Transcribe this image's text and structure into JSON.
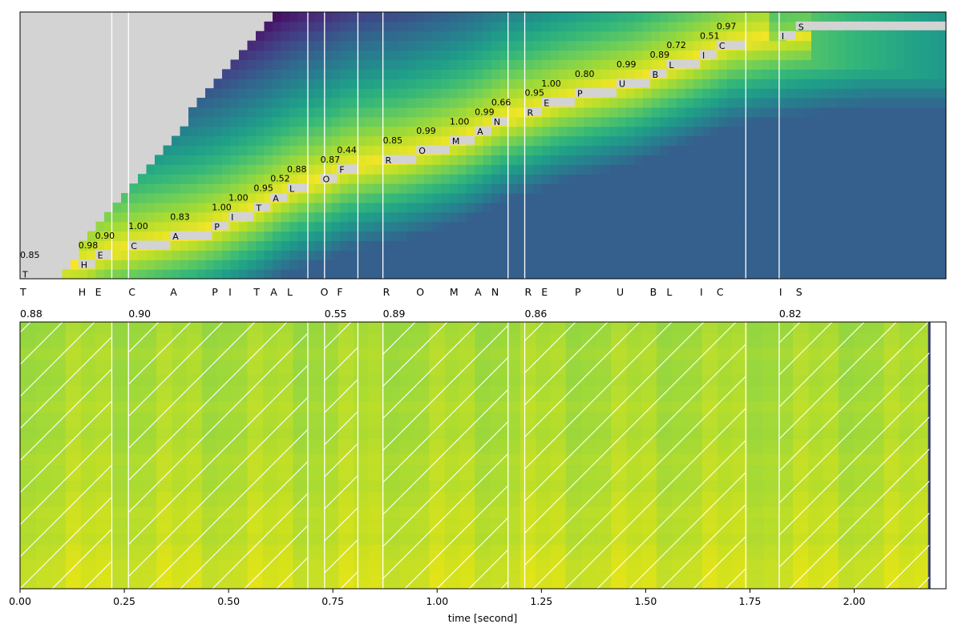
{
  "chart_data": [
    {
      "type": "heatmap",
      "panel": "alignment",
      "colormap": "viridis",
      "background_color": "#d3d3d3",
      "path_color": "#d3d3d3",
      "grid": false,
      "tokens": [
        {
          "char": "T",
          "t0": 0.0,
          "t1": 0.02,
          "score": "0.85"
        },
        {
          "char": "H",
          "t0": 0.14,
          "t1": 0.18,
          "score": "0.98"
        },
        {
          "char": "E",
          "t0": 0.18,
          "t1": 0.22,
          "score": "0.90"
        },
        {
          "char": "C",
          "t0": 0.26,
          "t1": 0.36,
          "score": "1.00"
        },
        {
          "char": "A",
          "t0": 0.36,
          "t1": 0.46,
          "score": "0.83"
        },
        {
          "char": "P",
          "t0": 0.46,
          "t1": 0.5,
          "score": "1.00"
        },
        {
          "char": "I",
          "t0": 0.5,
          "t1": 0.56,
          "score": "1.00"
        },
        {
          "char": "T",
          "t0": 0.56,
          "t1": 0.6,
          "score": "0.95"
        },
        {
          "char": "A",
          "t0": 0.6,
          "t1": 0.64,
          "score": "0.52"
        },
        {
          "char": "L",
          "t0": 0.64,
          "t1": 0.69,
          "score": "0.88"
        },
        {
          "char": "O",
          "t0": 0.72,
          "t1": 0.76,
          "score": "0.87"
        },
        {
          "char": "F",
          "t0": 0.76,
          "t1": 0.81,
          "score": "0.44"
        },
        {
          "char": "R",
          "t0": 0.87,
          "t1": 0.95,
          "score": "0.85"
        },
        {
          "char": "O",
          "t0": 0.95,
          "t1": 1.03,
          "score": "0.99"
        },
        {
          "char": "M",
          "t0": 1.03,
          "t1": 1.09,
          "score": "1.00"
        },
        {
          "char": "A",
          "t0": 1.09,
          "t1": 1.13,
          "score": "0.99"
        },
        {
          "char": "N",
          "t0": 1.13,
          "t1": 1.17,
          "score": "0.66"
        },
        {
          "char": "R",
          "t0": 1.21,
          "t1": 1.25,
          "score": "0.95"
        },
        {
          "char": "E",
          "t0": 1.25,
          "t1": 1.33,
          "score": "1.00"
        },
        {
          "char": "P",
          "t0": 1.33,
          "t1": 1.43,
          "score": "0.80"
        },
        {
          "char": "U",
          "t0": 1.43,
          "t1": 1.51,
          "score": "0.99"
        },
        {
          "char": "B",
          "t0": 1.51,
          "t1": 1.55,
          "score": "0.89"
        },
        {
          "char": "L",
          "t0": 1.55,
          "t1": 1.63,
          "score": "0.72"
        },
        {
          "char": "I",
          "t0": 1.63,
          "t1": 1.67,
          "score": "0.51"
        },
        {
          "char": "C",
          "t0": 1.67,
          "t1": 1.74,
          "score": "0.97"
        },
        {
          "char": "I",
          "t0": 1.82,
          "t1": 1.86,
          "score": ""
        },
        {
          "char": "S",
          "t0": 1.86,
          "t1": 2.22,
          "score": ""
        }
      ],
      "word_boundaries": [
        0.22,
        0.26,
        0.69,
        0.73,
        0.81,
        0.87,
        1.17,
        1.21,
        1.74,
        1.82
      ]
    },
    {
      "type": "heatmap",
      "panel": "spectrogram",
      "colormap": "viridis",
      "xlabel": "time [second]",
      "xlim": [
        0,
        2.22
      ],
      "xticks": [
        "0.00",
        "0.25",
        "0.50",
        "0.75",
        "1.00",
        "1.25",
        "1.50",
        "1.75",
        "2.00"
      ],
      "xtick_values": [
        0,
        0.25,
        0.5,
        0.75,
        1.0,
        1.25,
        1.5,
        1.75,
        2.0
      ],
      "audio_end": 2.18,
      "words": [
        {
          "t0": 0.0,
          "t1": 0.22,
          "score": "0.88"
        },
        {
          "t0": 0.26,
          "t1": 0.69,
          "score": "0.90"
        },
        {
          "t0": 0.73,
          "t1": 0.81,
          "score": "0.55"
        },
        {
          "t0": 0.87,
          "t1": 1.17,
          "score": "0.89"
        },
        {
          "t0": 1.21,
          "t1": 1.74,
          "score": "0.86"
        },
        {
          "t0": 1.82,
          "t1": 2.18,
          "score": "0.82"
        }
      ],
      "hatch_color": "#ffffff",
      "grid": false
    }
  ]
}
